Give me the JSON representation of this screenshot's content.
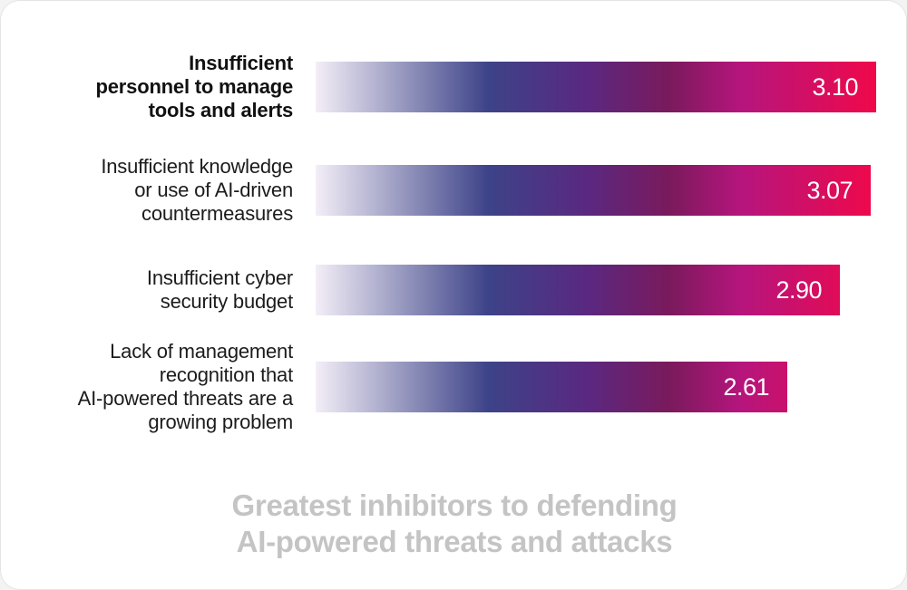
{
  "chart_data": {
    "type": "bar",
    "orientation": "horizontal",
    "title": "Greatest inhibitors to defending AI-powered threats and attacks",
    "categories": [
      "Insufficient personnel to manage tools and alerts",
      "Insufficient knowledge or use of AI-driven countermeasures",
      "Insufficient cyber security budget",
      "Lack of management recognition that AI-powered threats are a growing problem"
    ],
    "values": [
      3.1,
      3.07,
      2.9,
      2.61
    ],
    "value_labels": [
      "3.10",
      "3.07",
      "2.90",
      "2.61"
    ],
    "highlighted_category": 0,
    "grid": false,
    "legend": "none",
    "colors": {
      "gradient_start": "#f3eef7",
      "gradient_mid_blue": "#3d4388",
      "gradient_purple": "#5a2880",
      "gradient_wine": "#7a1a5c",
      "gradient_magenta": "#b6157d",
      "gradient_end_red": "#f0084a",
      "caption": "#c4c4c4"
    }
  },
  "caption": {
    "line1": "Greatest inhibitors to defending",
    "line2": "AI-powered threats and attacks"
  },
  "labels": [
    "Insufficient\npersonnel to manage\ntools and alerts",
    "Insufficient knowledge\nor use of AI-driven\ncountermeasures",
    "Insufficient cyber\nsecurity budget",
    "Lack of management\nrecognition that\nAI-powered threats are a\ngrowing problem"
  ]
}
